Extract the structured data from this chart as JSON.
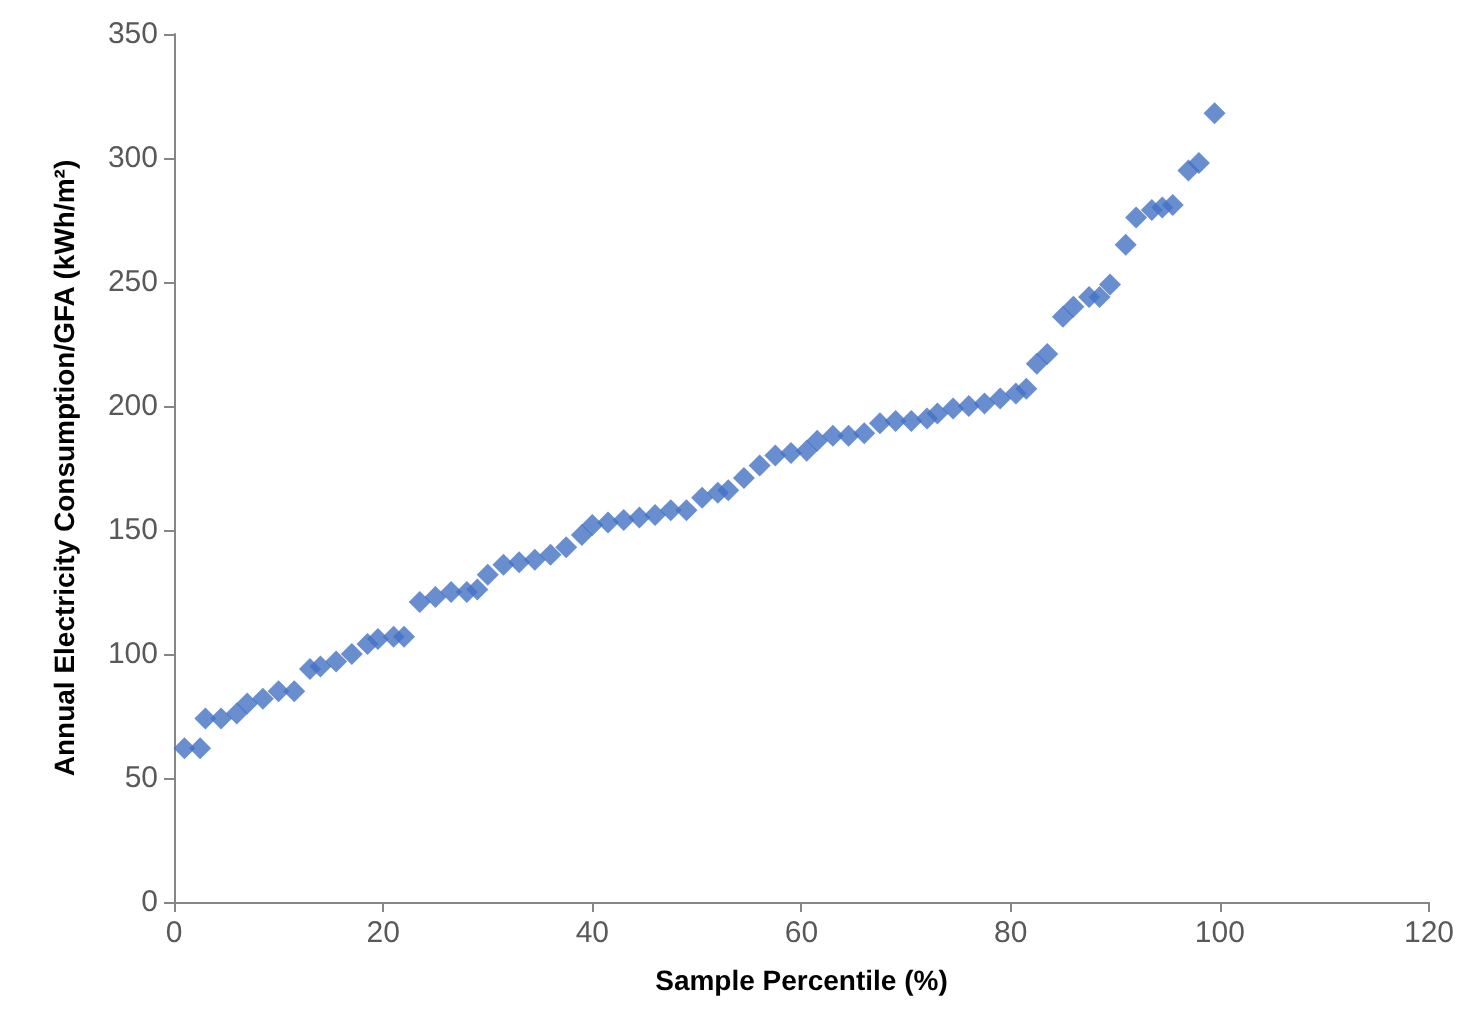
{
  "chart_data": {
    "type": "scatter",
    "xlabel": "Sample Percentile (%)",
    "ylabel": "Annual Electricity Consumption/GFA (kWh/m²)",
    "xlim": [
      0,
      120
    ],
    "xticks": [
      0,
      20,
      40,
      60,
      80,
      100,
      120
    ],
    "ylim": [
      0,
      350
    ],
    "yticks": [
      0,
      50,
      100,
      150,
      200,
      250,
      300,
      350
    ],
    "grid": false,
    "marker": "diamond",
    "series": [
      {
        "color": "#4472c4",
        "x": [
          1,
          2.5,
          3,
          4.5,
          6,
          7,
          8.5,
          10,
          11.5,
          13,
          14,
          15.5,
          17,
          18.5,
          19.5,
          21,
          22,
          23.5,
          25,
          26.5,
          28,
          29,
          30,
          31.5,
          33,
          34.5,
          36,
          37.5,
          39,
          40,
          41.5,
          43,
          44.5,
          46,
          47.5,
          49,
          50.5,
          52,
          53,
          54.5,
          56,
          57.5,
          59,
          60.5,
          61.5,
          63,
          64.5,
          66,
          67.5,
          69,
          70.5,
          72,
          73,
          74.5,
          76,
          77.5,
          79,
          80.5,
          81.5,
          82.5,
          83.5,
          85,
          86,
          87.5,
          88.5,
          89.5,
          91,
          92,
          93.5,
          94.5,
          95.5,
          97,
          98,
          99.5
        ],
        "values": [
          62,
          62,
          74,
          74,
          76,
          80,
          82,
          85,
          85,
          94,
          95,
          97,
          100,
          104,
          106,
          107,
          107,
          121,
          123,
          125,
          125,
          126,
          132,
          136,
          137,
          138,
          140,
          143,
          148,
          152,
          153,
          154,
          155,
          156,
          158,
          158,
          163,
          165,
          166,
          171,
          176,
          180,
          181,
          182,
          186,
          188,
          188,
          189,
          193,
          194,
          194,
          195,
          197,
          199,
          200,
          201,
          203,
          205,
          207,
          217,
          221,
          236,
          240,
          244,
          244,
          249,
          265,
          276,
          279,
          280,
          281,
          295,
          298,
          318
        ]
      }
    ]
  }
}
